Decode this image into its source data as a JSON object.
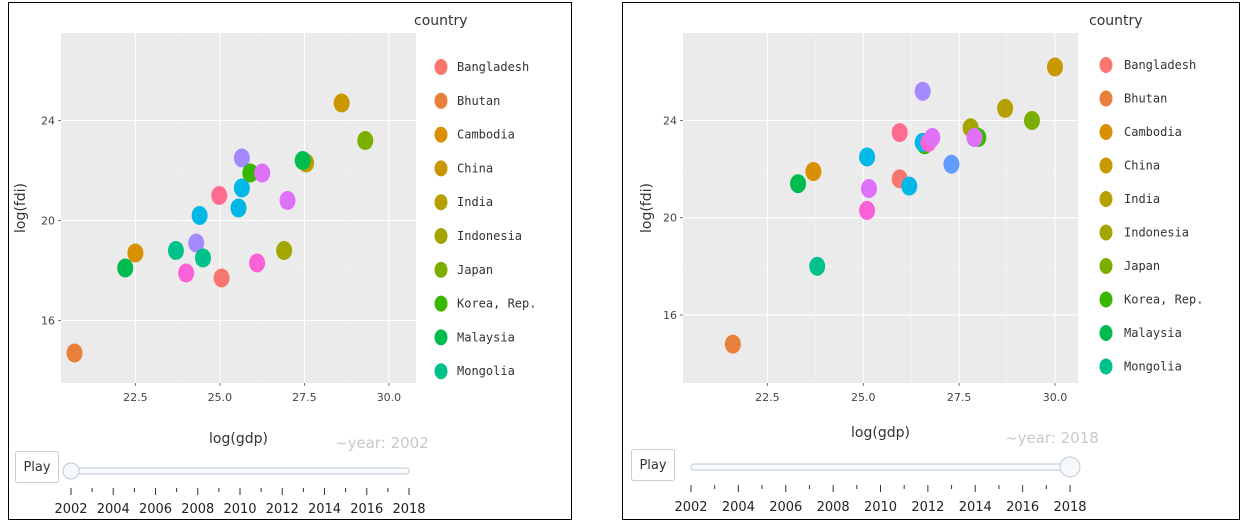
{
  "legend_title": "country",
  "play_label": "Play",
  "colors": {
    "Bangladesh": "#F8766D",
    "Bhutan": "#E8803C",
    "Cambodia": "#D89000",
    "China": "#C99800",
    "India": "#B5A000",
    "Indonesia": "#A3A500",
    "Japan": "#7CAE00",
    "Korea, Rep.": "#39B600",
    "Malaysia": "#00BB4E",
    "Mongolia": "#00C08B",
    "cyan": "#00B8E7",
    "blue": "#619CFF",
    "purple": "#A58AFF",
    "violet": "#DF70F8",
    "pink": "#FB61D7",
    "rosepink": "#FF6C91"
  },
  "legend_items": [
    "Bangladesh",
    "Bhutan",
    "Cambodia",
    "China",
    "India",
    "Indonesia",
    "Japan",
    "Korea, Rep.",
    "Malaysia",
    "Mongolia"
  ],
  "chart_data": [
    {
      "type": "scatter",
      "xlabel": "log(gdp)",
      "ylabel": "log(fdi)",
      "frame_label": "~year: 2002",
      "slider_value": 2002,
      "xlim": [
        20.3,
        30.8
      ],
      "ylim": [
        13.5,
        27.5
      ],
      "x_ticks": [
        22.5,
        25.0,
        27.5,
        30.0
      ],
      "x_tick_labels": [
        "22.5",
        "25.0",
        "27.5",
        "30.0"
      ],
      "y_ticks": [
        16,
        20,
        24
      ],
      "y_tick_labels": [
        "16",
        "20",
        "24"
      ],
      "grid": true,
      "legend_position": "right",
      "points": [
        {
          "x": 20.7,
          "y": 14.7,
          "color": "#E8803C"
        },
        {
          "x": 22.2,
          "y": 18.1,
          "color": "#00BB4E"
        },
        {
          "x": 22.5,
          "y": 18.7,
          "color": "#D89000"
        },
        {
          "x": 23.7,
          "y": 18.8,
          "color": "#00C08B"
        },
        {
          "x": 24.0,
          "y": 17.9,
          "color": "#FB61D7"
        },
        {
          "x": 24.3,
          "y": 19.1,
          "color": "#A58AFF"
        },
        {
          "x": 24.4,
          "y": 20.2,
          "color": "#00B8E7"
        },
        {
          "x": 24.5,
          "y": 18.5,
          "color": "#00C08B"
        },
        {
          "x": 24.98,
          "y": 21.0,
          "color": "#FF6C91"
        },
        {
          "x": 25.05,
          "y": 17.7,
          "color": "#F8766D"
        },
        {
          "x": 25.55,
          "y": 20.5,
          "color": "#00B8E7"
        },
        {
          "x": 25.65,
          "y": 21.3,
          "color": "#00B8E7"
        },
        {
          "x": 25.65,
          "y": 22.5,
          "color": "#A58AFF"
        },
        {
          "x": 25.9,
          "y": 21.9,
          "color": "#39B600"
        },
        {
          "x": 26.1,
          "y": 18.3,
          "color": "#FB61D7"
        },
        {
          "x": 26.25,
          "y": 21.9,
          "color": "#DF70F8"
        },
        {
          "x": 26.9,
          "y": 18.8,
          "color": "#A3A500"
        },
        {
          "x": 27.0,
          "y": 20.8,
          "color": "#DF70F8"
        },
        {
          "x": 27.55,
          "y": 22.3,
          "color": "#B5A000"
        },
        {
          "x": 27.45,
          "y": 22.4,
          "color": "#00BB4E"
        },
        {
          "x": 28.6,
          "y": 24.7,
          "color": "#C99800"
        },
        {
          "x": 29.3,
          "y": 23.2,
          "color": "#7CAE00"
        }
      ]
    },
    {
      "type": "scatter",
      "xlabel": "log(gdp)",
      "ylabel": "log(fdi)",
      "frame_label": "~year: 2018",
      "slider_value": 2018,
      "xlim": [
        20.3,
        30.6
      ],
      "ylim": [
        13.2,
        27.6
      ],
      "x_ticks": [
        22.5,
        25.0,
        27.5,
        30.0
      ],
      "x_tick_labels": [
        "22.5",
        "25.0",
        "27.5",
        "30.0"
      ],
      "y_ticks": [
        16,
        20,
        24
      ],
      "y_tick_labels": [
        "16",
        "20",
        "24"
      ],
      "grid": true,
      "legend_position": "right",
      "points": [
        {
          "x": 21.6,
          "y": 14.8,
          "color": "#E8803C"
        },
        {
          "x": 23.3,
          "y": 21.4,
          "color": "#00BB4E"
        },
        {
          "x": 23.7,
          "y": 21.9,
          "color": "#D89000"
        },
        {
          "x": 23.8,
          "y": 18.0,
          "color": "#00C08B"
        },
        {
          "x": 25.1,
          "y": 20.3,
          "color": "#FB61D7"
        },
        {
          "x": 25.15,
          "y": 21.2,
          "color": "#DF70F8"
        },
        {
          "x": 25.1,
          "y": 22.5,
          "color": "#00B8E7"
        },
        {
          "x": 25.95,
          "y": 21.6,
          "color": "#F8766D"
        },
        {
          "x": 25.95,
          "y": 23.5,
          "color": "#FF6C91"
        },
        {
          "x": 26.2,
          "y": 21.3,
          "color": "#00B8E7"
        },
        {
          "x": 26.55,
          "y": 25.2,
          "color": "#A58AFF"
        },
        {
          "x": 26.6,
          "y": 23.0,
          "color": "#39B600"
        },
        {
          "x": 26.55,
          "y": 23.1,
          "color": "#00B8E7"
        },
        {
          "x": 26.7,
          "y": 23.1,
          "color": "#FB61D7"
        },
        {
          "x": 26.8,
          "y": 23.3,
          "color": "#DF70F8"
        },
        {
          "x": 27.3,
          "y": 22.2,
          "color": "#619CFF"
        },
        {
          "x": 27.8,
          "y": 23.7,
          "color": "#A3A500"
        },
        {
          "x": 28.0,
          "y": 23.3,
          "color": "#39B600"
        },
        {
          "x": 27.9,
          "y": 23.3,
          "color": "#DF70F8"
        },
        {
          "x": 28.7,
          "y": 24.5,
          "color": "#B5A000"
        },
        {
          "x": 29.4,
          "y": 24.0,
          "color": "#7CAE00"
        },
        {
          "x": 30.0,
          "y": 26.2,
          "color": "#C99800"
        }
      ]
    }
  ],
  "slider_ticks": [
    "2002",
    "2004",
    "2006",
    "2008",
    "2010",
    "2012",
    "2014",
    "2016",
    "2018"
  ],
  "slider_min": 2002,
  "slider_max": 2018
}
